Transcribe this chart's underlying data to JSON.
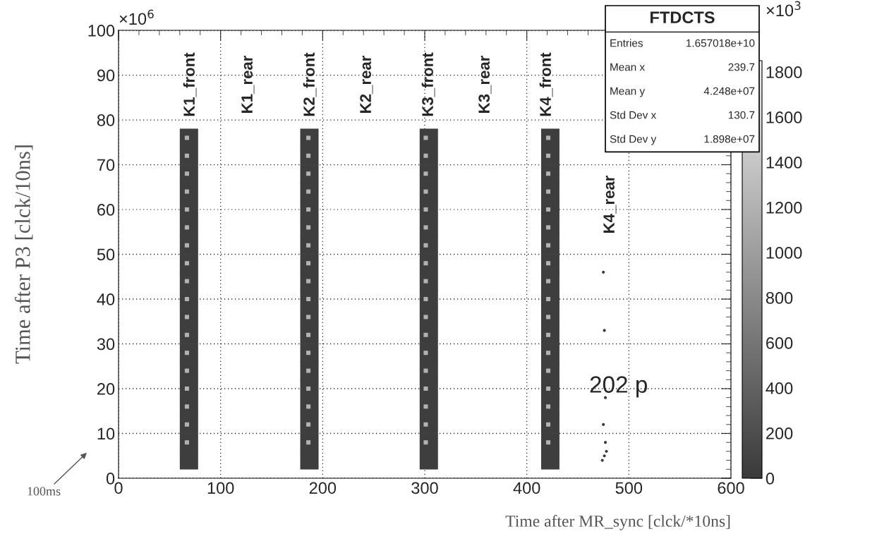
{
  "chart_data": {
    "type": "scatter",
    "xlabel": "Time after MR_sync [clck/*10ns]",
    "ylabel": "Time after P3 [clck/10ns]",
    "xlim": [
      0,
      600
    ],
    "xticks": [
      0,
      100,
      200,
      300,
      400,
      500,
      600
    ],
    "ylim": [
      0,
      100
    ],
    "yticks": [
      0,
      10,
      20,
      30,
      40,
      50,
      60,
      70,
      80,
      90,
      100
    ],
    "clim": [
      0,
      1850
    ],
    "cticks": [
      0,
      200,
      400,
      600,
      800,
      1000,
      1200,
      1400,
      1600,
      1800
    ],
    "grid": true,
    "marker": "square",
    "series": [
      {
        "x": [
          69,
          69,
          69,
          69,
          69,
          69,
          69,
          69,
          69,
          69,
          69,
          69,
          69,
          69,
          69,
          69,
          69,
          69,
          69
        ],
        "values": [
          4,
          8,
          12,
          16,
          20,
          24,
          28,
          32,
          36,
          40,
          44,
          48,
          52,
          56,
          60,
          64,
          68,
          72,
          76
        ],
        "cvalues": [
          50,
          50,
          50,
          50,
          50,
          50,
          50,
          50,
          50,
          50,
          50,
          50,
          50,
          50,
          50,
          50,
          50,
          50,
          50
        ]
      },
      {
        "x": [
          67,
          67,
          67,
          67,
          67,
          67,
          67,
          67,
          67,
          67,
          67,
          67,
          67,
          67,
          67,
          67,
          67,
          67
        ],
        "values": [
          8,
          12,
          16,
          20,
          24,
          28,
          32,
          36,
          40,
          44,
          48,
          52,
          56,
          60,
          64,
          68,
          72,
          76
        ],
        "cvalues": [
          1200,
          1200,
          1200,
          1200,
          1200,
          1200,
          1200,
          1200,
          1200,
          1200,
          1200,
          1200,
          1200,
          1200,
          1200,
          1200,
          1200,
          1200
        ]
      },
      {
        "x": [
          187,
          187,
          187,
          187,
          187,
          187,
          187,
          187,
          187,
          187,
          187,
          187,
          187,
          187,
          187,
          187,
          187,
          187,
          187
        ],
        "values": [
          4,
          8,
          12,
          16,
          20,
          24,
          28,
          32,
          36,
          40,
          44,
          48,
          52,
          56,
          60,
          64,
          68,
          72,
          76
        ],
        "cvalues": [
          50,
          50,
          50,
          50,
          50,
          50,
          50,
          50,
          50,
          50,
          50,
          50,
          50,
          50,
          50,
          50,
          50,
          50,
          50
        ]
      },
      {
        "x": [
          186,
          186,
          186,
          186,
          186,
          186,
          186,
          186,
          186,
          186,
          186,
          186,
          186,
          186,
          186,
          186,
          186,
          186
        ],
        "values": [
          8,
          12,
          16,
          20,
          24,
          28,
          32,
          36,
          40,
          44,
          48,
          52,
          56,
          60,
          64,
          68,
          72,
          76
        ],
        "cvalues": [
          1200,
          1200,
          1200,
          1200,
          1200,
          1200,
          1200,
          1200,
          1200,
          1200,
          1200,
          1200,
          1200,
          1200,
          1200,
          1200,
          1200,
          1200
        ]
      },
      {
        "x": [
          304,
          304,
          304,
          304,
          304,
          304,
          304,
          304,
          304,
          304,
          304,
          304,
          304,
          304,
          304,
          304,
          304,
          304,
          304
        ],
        "values": [
          4,
          8,
          12,
          16,
          20,
          24,
          28,
          32,
          36,
          40,
          44,
          48,
          52,
          56,
          60,
          64,
          68,
          72,
          76
        ],
        "cvalues": [
          50,
          50,
          50,
          50,
          50,
          50,
          50,
          50,
          50,
          50,
          50,
          50,
          50,
          50,
          50,
          50,
          50,
          50,
          50
        ]
      },
      {
        "x": [
          301,
          301,
          301,
          301,
          301,
          301,
          301,
          301,
          301,
          301,
          301,
          301,
          301,
          301,
          301,
          301,
          301,
          301
        ],
        "values": [
          8,
          12,
          16,
          20,
          24,
          28,
          32,
          36,
          40,
          44,
          48,
          52,
          56,
          60,
          64,
          68,
          72,
          76
        ],
        "cvalues": [
          1200,
          1200,
          1200,
          1200,
          1200,
          1200,
          1200,
          1200,
          1200,
          1200,
          1200,
          1200,
          1200,
          1200,
          1200,
          1200,
          1200,
          1200
        ]
      },
      {
        "x": [
          423,
          423,
          423,
          423,
          423,
          423,
          423,
          423,
          423,
          423,
          423,
          423,
          423,
          423,
          423,
          423,
          423,
          423,
          423
        ],
        "values": [
          4,
          8,
          12,
          16,
          20,
          24,
          28,
          32,
          36,
          40,
          44,
          48,
          52,
          56,
          60,
          64,
          68,
          72,
          76
        ],
        "cvalues": [
          50,
          50,
          50,
          50,
          50,
          50,
          50,
          50,
          50,
          50,
          50,
          50,
          50,
          50,
          50,
          50,
          50,
          50,
          50
        ]
      },
      {
        "x": [
          421,
          421,
          421,
          421,
          421,
          421,
          421,
          421,
          421,
          421,
          421,
          421,
          421,
          421,
          421,
          421,
          421,
          421
        ],
        "values": [
          8,
          12,
          16,
          20,
          24,
          28,
          32,
          36,
          40,
          44,
          48,
          52,
          56,
          60,
          64,
          68,
          72,
          76
        ],
        "cvalues": [
          1200,
          1200,
          1200,
          1200,
          1200,
          1200,
          1200,
          1200,
          1200,
          1200,
          1200,
          1200,
          1200,
          1200,
          1200,
          1200,
          1200,
          1200
        ]
      },
      {
        "marker": "circle",
        "x": [
          474,
          476,
          478,
          477,
          475,
          477,
          476,
          475
        ],
        "values": [
          4,
          5,
          6,
          8,
          12,
          18,
          33,
          46
        ],
        "cvalues": [
          1,
          1,
          1,
          1,
          1,
          1,
          1,
          1
        ]
      }
    ],
    "annotations": [
      "×10$^{6}$",
      "×10$^{3}$",
      "100ms",
      "FTDCTS",
      "Entries",
      "1.657018e+10",
      "Mean x",
      "239.7",
      "Mean y",
      "4.248e+07",
      "Std Dev x",
      "130.7",
      "Std Dev y",
      "1.898e+07",
      "K1_front",
      "K1_rear",
      "K2_front",
      "K2_rear",
      "K3_front",
      "K3_rear",
      "K4_front",
      "K4_rear",
      "202 p"
    ]
  }
}
